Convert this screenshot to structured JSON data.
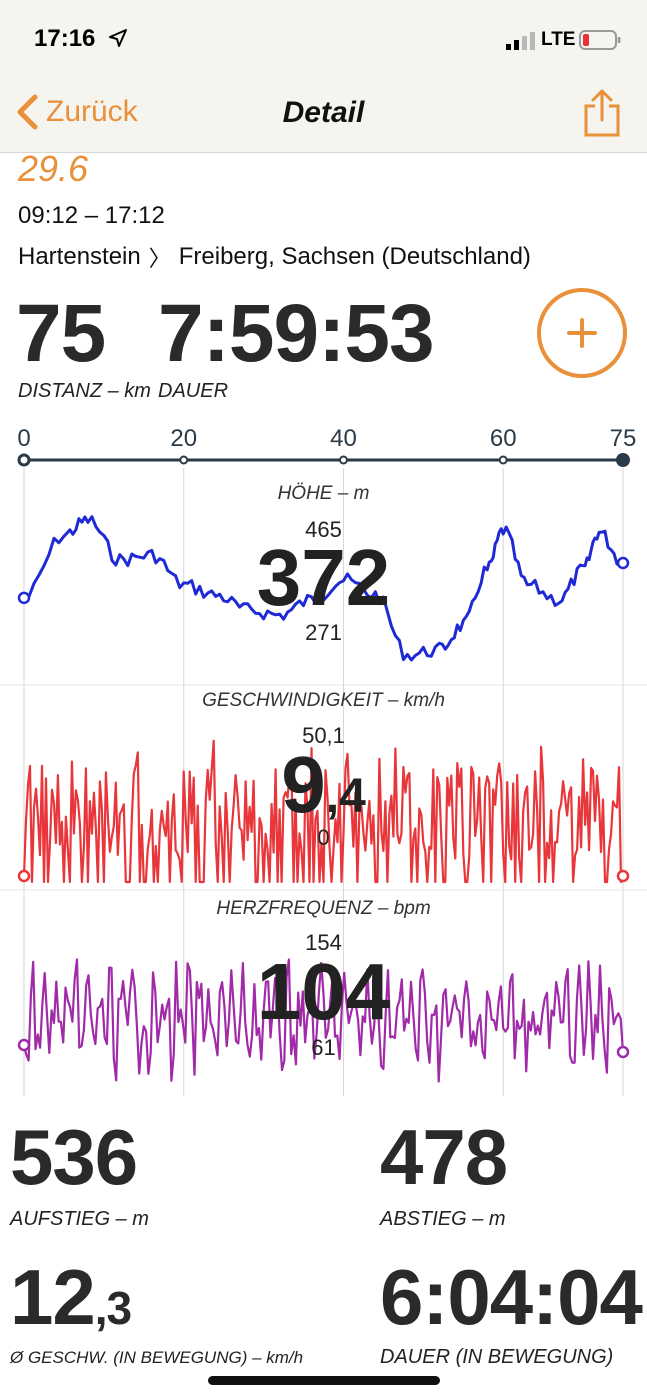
{
  "status_bar": {
    "time": "17:16",
    "network": "LTE"
  },
  "nav": {
    "back_label": "Zurück",
    "title": "Detail"
  },
  "ride": {
    "title": "29.6",
    "time_range": "09:12 – 17:12",
    "route_from": "Hartenstein",
    "route_sep": "〉",
    "route_to": "Freiberg, Sachsen (Deutschland)"
  },
  "summary": {
    "distance_value": "75",
    "distance_label": "DISTANZ – km",
    "duration_value": "7:59:53",
    "duration_label": "DAUER"
  },
  "distance_axis": {
    "ticks": [
      "0",
      "20",
      "40",
      "60",
      "75"
    ]
  },
  "charts": {
    "elevation": {
      "label": "HÖHE – m",
      "max": "465",
      "min": "271",
      "current": "372",
      "color": "#1f2ad6"
    },
    "speed": {
      "label": "GESCHWINDIGKEIT – km/h",
      "max": "50,1",
      "min": "0",
      "current_int": "9",
      "current_dec": ",4",
      "color": "#e8363a"
    },
    "heart_rate": {
      "label": "HERZFREQUENZ – bpm",
      "max": "154",
      "min": "61",
      "current": "104",
      "color": "#a02aa8"
    }
  },
  "stats": {
    "ascent_value": "536",
    "ascent_label": "AUFSTIEG – m",
    "descent_value": "478",
    "descent_label": "ABSTIEG – m",
    "avg_speed_int": "12",
    "avg_speed_dec": ",3",
    "avg_speed_label": "Ø GESCHW. (IN BEWEGUNG) – km/h",
    "moving_duration_value": "6:04:04",
    "moving_duration_label": "DAUER (IN BEWEGUNG)"
  },
  "colors": {
    "accent": "#e8903a",
    "axis": "#2b3a48"
  }
}
